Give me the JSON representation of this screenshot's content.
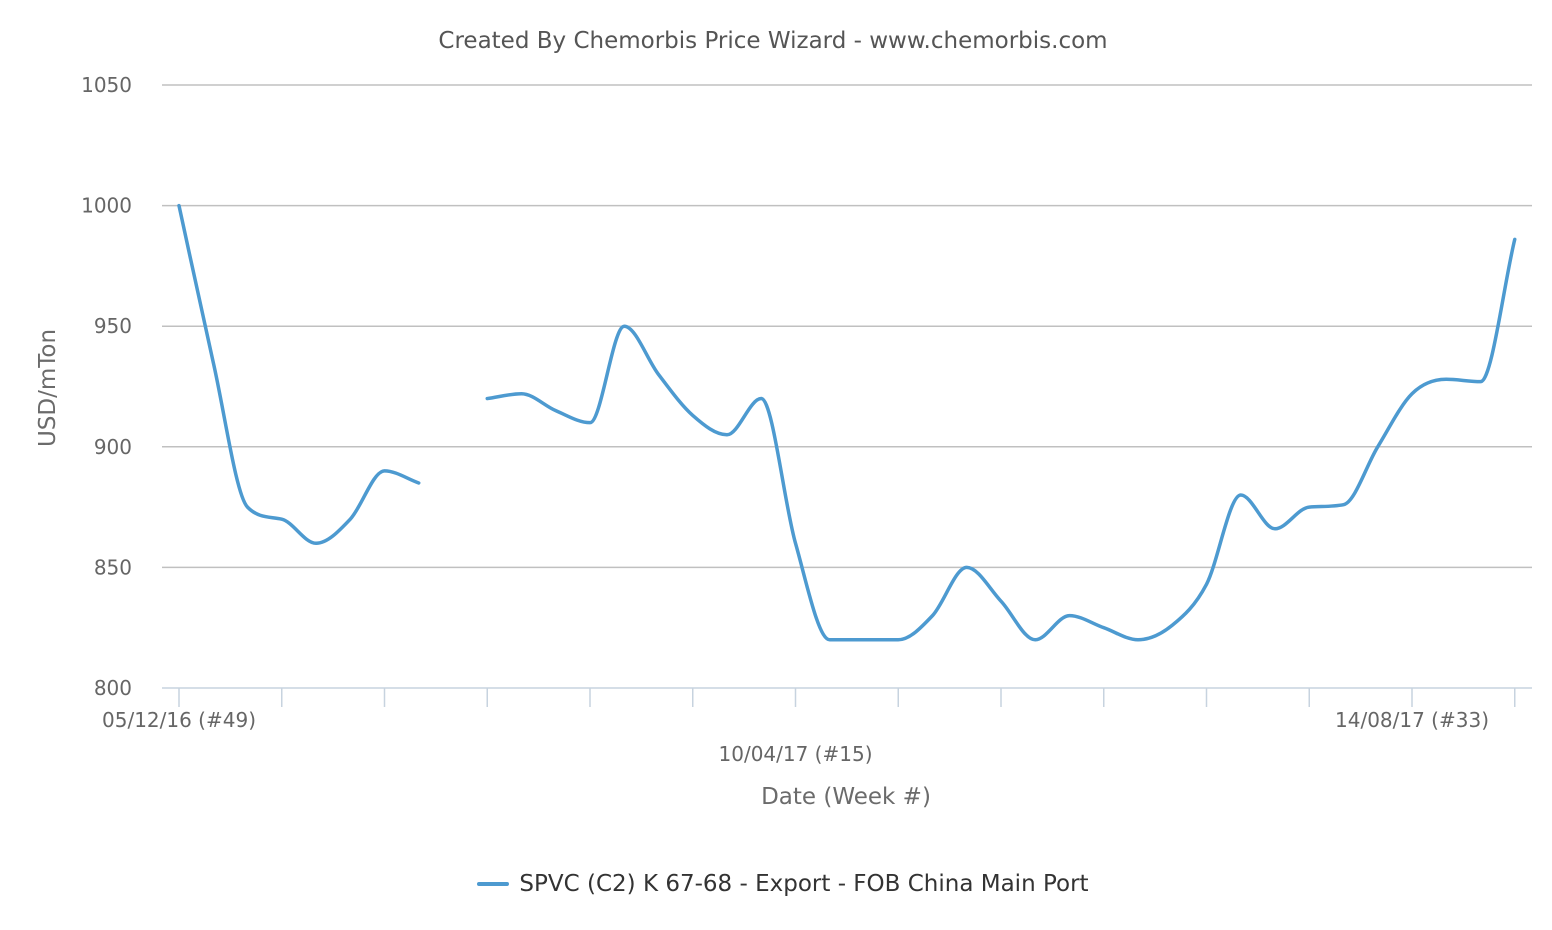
{
  "chart_data": {
    "type": "line",
    "title": "Created By Chemorbis Price Wizard - www.chemorbis.com",
    "xlabel": "Date (Week #)",
    "ylabel": "USD/mTon",
    "ylim": [
      800,
      1050
    ],
    "yticks": [
      800,
      850,
      900,
      950,
      1000,
      1050
    ],
    "grid": true,
    "legend_position": "bottom-center",
    "x_tick_labels": [
      {
        "label": "05/12/16 (#49)",
        "week_index": 0
      },
      {
        "label": "10/04/17 (#15)",
        "week_index": 18
      },
      {
        "label": "14/08/17 (#33)",
        "week_index": 36
      }
    ],
    "series": [
      {
        "name": "SPVC (C2) K 67-68 - Export - FOB China Main Port",
        "color": "#4d9ad0",
        "points": [
          {
            "week_index": 0,
            "value": 1000
          },
          {
            "week_index": 1,
            "value": 935
          },
          {
            "week_index": 2,
            "value": 875
          },
          {
            "week_index": 3,
            "value": 870
          },
          {
            "week_index": 4,
            "value": 860
          },
          {
            "week_index": 5,
            "value": 870
          },
          {
            "week_index": 6,
            "value": 890
          },
          {
            "week_index": 7,
            "value": 885
          },
          {
            "week_index": 9,
            "value": 920
          },
          {
            "week_index": 10,
            "value": 922
          },
          {
            "week_index": 11,
            "value": 915
          },
          {
            "week_index": 12,
            "value": 910
          },
          {
            "week_index": 13,
            "value": 950
          },
          {
            "week_index": 14,
            "value": 930
          },
          {
            "week_index": 15,
            "value": 913
          },
          {
            "week_index": 16,
            "value": 905
          },
          {
            "week_index": 17,
            "value": 920
          },
          {
            "week_index": 18,
            "value": 860
          },
          {
            "week_index": 19,
            "value": 820
          },
          {
            "week_index": 20,
            "value": 820
          },
          {
            "week_index": 21,
            "value": 820
          },
          {
            "week_index": 22,
            "value": 830
          },
          {
            "week_index": 23,
            "value": 850
          },
          {
            "week_index": 24,
            "value": 836
          },
          {
            "week_index": 25,
            "value": 820
          },
          {
            "week_index": 26,
            "value": 830
          },
          {
            "week_index": 27,
            "value": 825
          },
          {
            "week_index": 28,
            "value": 820
          },
          {
            "week_index": 29,
            "value": 826
          },
          {
            "week_index": 30,
            "value": 843
          },
          {
            "week_index": 31,
            "value": 880
          },
          {
            "week_index": 32,
            "value": 866
          },
          {
            "week_index": 33,
            "value": 875
          },
          {
            "week_index": 34,
            "value": 876
          },
          {
            "week_index": 35,
            "value": 900
          },
          {
            "week_index": 36,
            "value": 922
          },
          {
            "week_index": 37,
            "value": 928
          },
          {
            "week_index": 38,
            "value": 927
          },
          {
            "week_index": 39,
            "value": 986
          }
        ]
      }
    ]
  }
}
